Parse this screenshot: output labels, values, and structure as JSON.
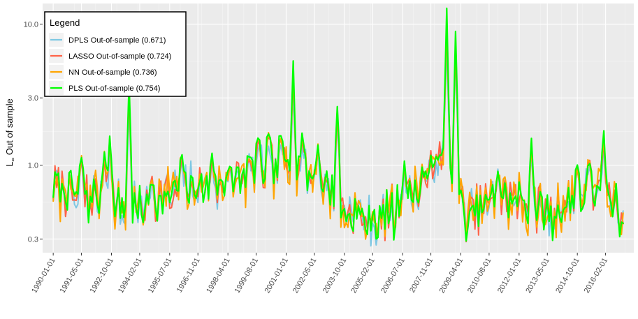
{
  "chart_data": {
    "type": "line",
    "title": "",
    "xlabel": "",
    "ylabel": "L∞ Out of sample",
    "ylabel_main": "L",
    "ylabel_sub": "∞",
    "ylabel_rest": " Out of sample",
    "y_scale": "log",
    "ylim": [
      0.24,
      14.0
    ],
    "y_ticks": [
      {
        "value": 0.3,
        "label": "0.3"
      },
      {
        "value": 1.0,
        "label": "1.0"
      },
      {
        "value": 3.0,
        "label": "3.0"
      },
      {
        "value": 10.0,
        "label": "10.0"
      }
    ],
    "xlim": [
      "1989-07-01",
      "2017-06-01"
    ],
    "x_ticks": [
      "1990-01-01",
      "1991-05-01",
      "1992-10-01",
      "1994-02-01",
      "1995-07-01",
      "1996-11-01",
      "1998-04-01",
      "1999-08-01",
      "2001-01-01",
      "2002-05-01",
      "2003-10-01",
      "2005-02-01",
      "2006-07-01",
      "2007-11-01",
      "2009-04-01",
      "2010-08-01",
      "2012-01-01",
      "2013-05-01",
      "2014-10-01",
      "2016-02-01"
    ],
    "grid": true,
    "legend": {
      "title": "Legend",
      "placement": "top-left",
      "entries": [
        {
          "name": "DPLS Out-of-sample (0.671)",
          "color": "#7EC8E3"
        },
        {
          "name": "LASSO Out-of-sample (0.724)",
          "color": "#FF6347"
        },
        {
          "name": "NN Out-of-sample (0.736)",
          "color": "#FFA500"
        },
        {
          "name": "PLS Out-of-sample (0.754)",
          "color": "#00FF00"
        }
      ]
    },
    "series": [
      {
        "name": "DPLS Out-of-sample (0.671)",
        "color": "#7EC8E3",
        "stroke_width": 2.0,
        "noise": 0.1,
        "spike_scale": 0.55
      },
      {
        "name": "LASSO Out-of-sample (0.724)",
        "color": "#FF6347",
        "stroke_width": 2.0,
        "noise": 0.08,
        "spike_scale": 0.75
      },
      {
        "name": "NN Out-of-sample (0.736)",
        "color": "#FFA500",
        "stroke_width": 2.0,
        "noise": 0.13,
        "spike_scale": 0.85
      },
      {
        "name": "PLS Out-of-sample (0.754)",
        "color": "#00FF00",
        "stroke_width": 2.2,
        "noise": 0.06,
        "spike_scale": 1.0
      }
    ],
    "base_level": [
      {
        "date": "1990-01-01",
        "value": 0.72
      },
      {
        "date": "1991-01-01",
        "value": 0.6
      },
      {
        "date": "1992-01-01",
        "value": 0.62
      },
      {
        "date": "1993-01-01",
        "value": 0.52
      },
      {
        "date": "1994-01-01",
        "value": 0.5
      },
      {
        "date": "1995-01-01",
        "value": 0.56
      },
      {
        "date": "1996-01-01",
        "value": 0.66
      },
      {
        "date": "1997-01-01",
        "value": 0.68
      },
      {
        "date": "1998-01-01",
        "value": 0.7
      },
      {
        "date": "1999-01-01",
        "value": 0.8
      },
      {
        "date": "2000-01-01",
        "value": 0.92
      },
      {
        "date": "2001-01-01",
        "value": 0.95
      },
      {
        "date": "2002-01-01",
        "value": 0.85
      },
      {
        "date": "2003-01-01",
        "value": 0.7
      },
      {
        "date": "2003-09-01",
        "value": 0.48
      },
      {
        "date": "2004-06-01",
        "value": 0.44
      },
      {
        "date": "2005-06-01",
        "value": 0.42
      },
      {
        "date": "2006-06-01",
        "value": 0.55
      },
      {
        "date": "2007-06-01",
        "value": 0.7
      },
      {
        "date": "2008-06-01",
        "value": 1.05
      },
      {
        "date": "2009-01-01",
        "value": 0.95
      },
      {
        "date": "2009-06-01",
        "value": 0.42
      },
      {
        "date": "2010-06-01",
        "value": 0.52
      },
      {
        "date": "2011-06-01",
        "value": 0.58
      },
      {
        "date": "2012-06-01",
        "value": 0.52
      },
      {
        "date": "2013-06-01",
        "value": 0.45
      },
      {
        "date": "2014-06-01",
        "value": 0.58
      },
      {
        "date": "2015-06-01",
        "value": 0.66
      },
      {
        "date": "2016-06-01",
        "value": 0.55
      },
      {
        "date": "2017-01-01",
        "value": 0.45
      }
    ],
    "spikes": [
      {
        "date": "1991-05-01",
        "value": 1.15
      },
      {
        "date": "1992-06-01",
        "value": 1.25
      },
      {
        "date": "1992-09-01",
        "value": 1.7
      },
      {
        "date": "1993-08-01",
        "value": 4.0
      },
      {
        "date": "1994-09-01",
        "value": 0.75
      },
      {
        "date": "1996-02-01",
        "value": 1.25
      },
      {
        "date": "1997-07-01",
        "value": 1.2
      },
      {
        "date": "1998-05-01",
        "value": 1.0
      },
      {
        "date": "1999-04-01",
        "value": 1.2
      },
      {
        "date": "1999-09-01",
        "value": 1.6
      },
      {
        "date": "2000-03-01",
        "value": 1.8
      },
      {
        "date": "2000-10-01",
        "value": 1.7
      },
      {
        "date": "2001-05-01",
        "value": 5.3
      },
      {
        "date": "2001-10-01",
        "value": 1.8
      },
      {
        "date": "2002-07-01",
        "value": 1.5
      },
      {
        "date": "2003-06-01",
        "value": 2.8
      },
      {
        "date": "2006-08-01",
        "value": 1.05
      },
      {
        "date": "2007-07-01",
        "value": 0.85
      },
      {
        "date": "2008-02-01",
        "value": 1.25
      },
      {
        "date": "2008-08-01",
        "value": 12.5
      },
      {
        "date": "2009-01-01",
        "value": 9.0
      },
      {
        "date": "2011-01-01",
        "value": 0.9
      },
      {
        "date": "2012-08-01",
        "value": 1.5
      },
      {
        "date": "2014-10-01",
        "value": 1.0
      },
      {
        "date": "2015-05-01",
        "value": 1.1
      },
      {
        "date": "2016-01-01",
        "value": 1.7
      }
    ],
    "dips": [
      {
        "date": "1991-09-01",
        "value": 0.38
      },
      {
        "date": "1993-10-01",
        "value": 0.38
      },
      {
        "date": "2004-11-01",
        "value": 0.32
      },
      {
        "date": "2005-05-01",
        "value": 0.29
      },
      {
        "date": "2006-02-01",
        "value": 0.29
      },
      {
        "date": "2009-07-01",
        "value": 0.29
      },
      {
        "date": "2013-08-01",
        "value": 0.29
      },
      {
        "date": "2016-10-01",
        "value": 0.31
      }
    ]
  }
}
